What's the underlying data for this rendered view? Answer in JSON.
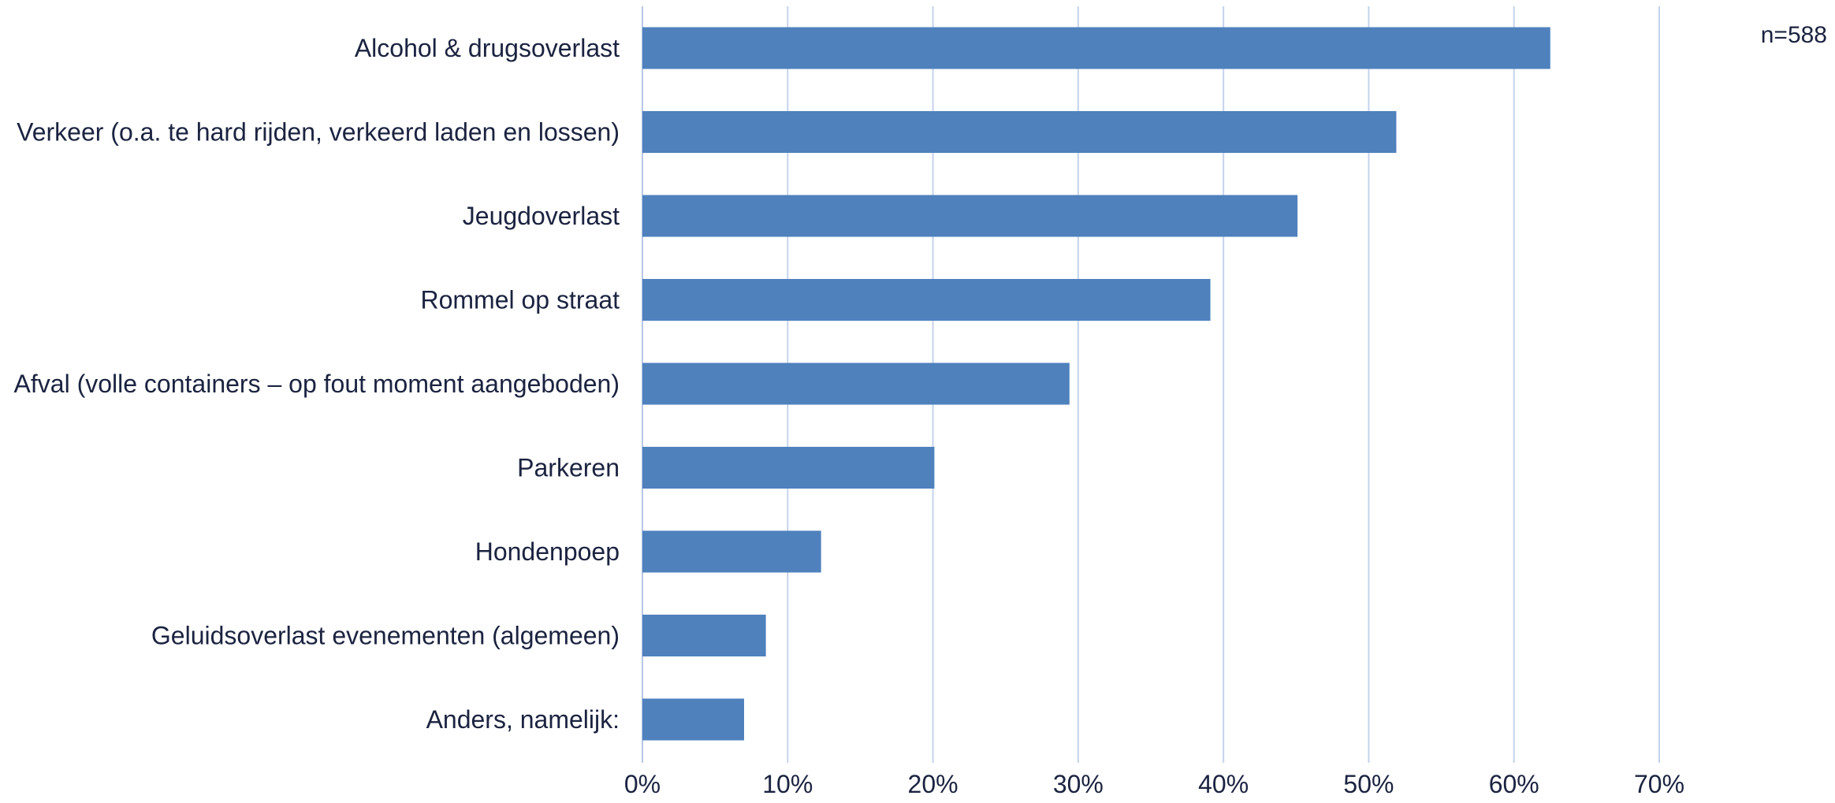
{
  "chart_data": {
    "type": "bar",
    "orientation": "horizontal",
    "title": "",
    "xlabel": "",
    "ylabel": "",
    "annotation": "n=588",
    "categories": [
      "Alcohol & drugsoverlast",
      "Verkeer (o.a. te hard rijden, verkeerd laden en lossen)",
      "Jeugdoverlast",
      "Rommel op straat",
      "Afval (volle containers – op fout moment aangeboden)",
      "Parkeren",
      "Hondenpoep",
      "Geluidsoverlast evenementen (algemeen)",
      "Anders, namelijk:"
    ],
    "values": [
      62.5,
      51.9,
      45.1,
      39.1,
      29.4,
      20.1,
      12.3,
      8.5,
      7.0
    ],
    "xlim": [
      0,
      70
    ],
    "xticks": [
      0,
      10,
      20,
      30,
      40,
      50,
      60,
      70
    ],
    "xtick_labels": [
      "0%",
      "10%",
      "20%",
      "30%",
      "40%",
      "50%",
      "60%",
      "70%"
    ],
    "grid": "vertical",
    "legend": "none",
    "colors": {
      "bar": "#4f81bd",
      "grid": "#c5d3ec",
      "text": "#1b2340"
    }
  }
}
